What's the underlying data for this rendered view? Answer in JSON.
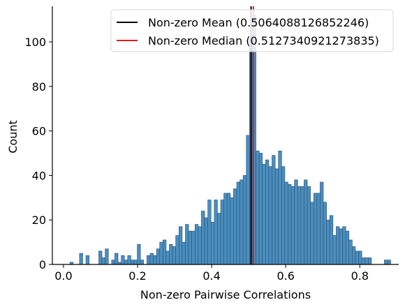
{
  "chart_data": {
    "type": "bar",
    "title": "",
    "xlabel": "Non-zero Pairwise Correlations",
    "ylabel": "Count",
    "xlim": [
      -0.03,
      0.905
    ],
    "ylim": [
      0,
      116
    ],
    "x_ticks": [
      0.0,
      0.2,
      0.4,
      0.6,
      0.8
    ],
    "x_tick_labels": [
      "0.0",
      "0.2",
      "0.4",
      "0.6",
      "0.8"
    ],
    "y_ticks": [
      0,
      20,
      40,
      60,
      80,
      100
    ],
    "y_tick_labels": [
      "0",
      "20",
      "40",
      "60",
      "80",
      "100"
    ],
    "grid": false,
    "legend_position": "top-right",
    "bin_start": 0.0,
    "bin_width": 0.00866,
    "counts": [
      0,
      0,
      1,
      0,
      0,
      5,
      0,
      4,
      0,
      0,
      0,
      6,
      3,
      7,
      0,
      2,
      5,
      1,
      4,
      2,
      4,
      2,
      2,
      9,
      2,
      0,
      4,
      5,
      4,
      7,
      10,
      11,
      6,
      9,
      8,
      13,
      17,
      10,
      18,
      15,
      15,
      18,
      17,
      24,
      21,
      29,
      19,
      29,
      23,
      29,
      32,
      32,
      30,
      34,
      37,
      38,
      40,
      58,
      101,
      112,
      51,
      50,
      45,
      47,
      44,
      49,
      43,
      51,
      44,
      37,
      36,
      35,
      38,
      35,
      35,
      38,
      35,
      28,
      32,
      32,
      37,
      28,
      20,
      22,
      13,
      17,
      16,
      17,
      15,
      11,
      8,
      6,
      6,
      3,
      3,
      3,
      0,
      0,
      0,
      0,
      2,
      2
    ],
    "vlines": [
      {
        "name": "Non-zero Mean (0.5064088126852246)",
        "x": 0.5064088126852246,
        "color": "#000000"
      },
      {
        "name": "Non-zero Median (0.5127340921273835)",
        "x": 0.5127340921273835,
        "color": "#e41a1c"
      }
    ],
    "bar_color": "#4a8fc0",
    "bar_edge_color": "#2b4a66"
  }
}
